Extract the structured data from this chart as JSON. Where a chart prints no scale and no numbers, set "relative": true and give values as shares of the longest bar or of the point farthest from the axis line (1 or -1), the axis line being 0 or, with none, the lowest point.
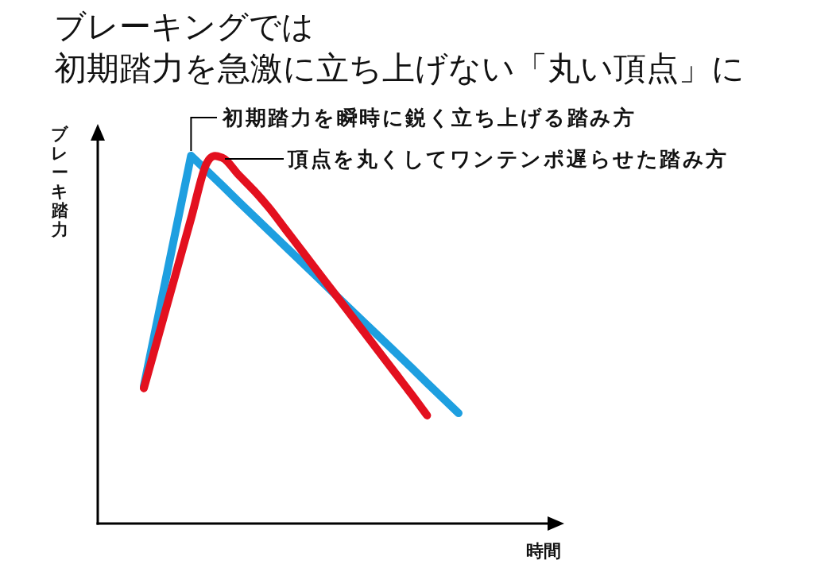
{
  "chart_data": {
    "type": "line",
    "title": "ブレーキングでは",
    "subtitle": "初期踏力を急激に立ち上げない「丸い頂点」に",
    "xlabel": "時間",
    "ylabel": "ブレーキ踏力",
    "relative": true,
    "line_style": "solid",
    "categories": [
      null,
      null,
      null,
      null,
      null,
      null,
      null,
      null,
      null,
      null,
      null,
      null,
      null,
      null,
      null,
      null,
      null,
      null,
      null,
      null,
      null
    ],
    "series": [
      {
        "color": "#1e9fe0",
        "values": [
          0.373,
          0.582,
          0.791,
          1,
          0.959,
          0.918,
          0.876,
          0.835,
          0.794,
          0.753,
          0.712,
          0.671,
          0.629,
          0.588,
          0.547,
          0.506,
          0.465,
          0.424,
          0.382,
          0.341,
          0.3
        ]
      },
      {
        "color": "#e3101f",
        "values": [
          0.368,
          0.521,
          0.675,
          0.829,
          0.98,
          0.994,
          0.949,
          0.905,
          0.856,
          0.8,
          0.744,
          0.688,
          0.632,
          0.576,
          0.52,
          0.464,
          0.408,
          0.352,
          0.294,
          null,
          null
        ]
      }
    ],
    "annotations": [
      "初期踏力を瞬時に鋭く立ち上げる踏み方",
      "頂点を丸くしてワンテンポ遅らせた踏み方"
    ]
  }
}
